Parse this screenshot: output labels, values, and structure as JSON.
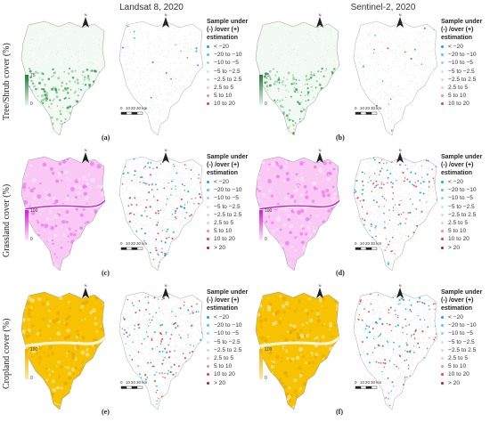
{
  "column_titles": [
    "Landsat 8, 2020",
    "Sentinel-2, 2020"
  ],
  "row_titles": [
    "Tree/Shrub cover (%)",
    "Grassland cover (%)",
    "Cropland cover (%)"
  ],
  "legend_title_lines": [
    "Sample under",
    "(-) /over (+)",
    "estimation"
  ],
  "legend_tree": [
    "< −20",
    "−20 to −10",
    "−10 to −5",
    "−5 to −2.5",
    "−2.5 to 2.5",
    "2.5 to 5",
    "5 to 10",
    "10 to 20"
  ],
  "legend_full": [
    "< −20",
    "−20 to −10",
    "−10 to −5",
    "−5 to −2.5",
    "−2.5 to 2.5",
    "2.5 to 5",
    "5 to 10",
    "10 to 20",
    "> 20"
  ],
  "legend_colors_tree": [
    "#00aeef",
    "#4cc3f0",
    "#8fd6f2",
    "#c8e8f4",
    "#d8d8d8",
    "#f4c8c8",
    "#ee8f8f",
    "#e0443e"
  ],
  "legend_colors_full": [
    "#00aeef",
    "#4cc3f0",
    "#8fd6f2",
    "#c8e8f4",
    "#d8d8d8",
    "#f4c8c8",
    "#ee8f8f",
    "#e0443e",
    "#c8102e"
  ],
  "panel_labels": [
    "(a)",
    "(b)",
    "(c)",
    "(d)",
    "(e)",
    "(f)"
  ],
  "colorbar": {
    "tree": {
      "max": "75",
      "min": "0"
    },
    "grass": {
      "max": "100",
      "min": "0"
    },
    "crop": {
      "max": "100",
      "min": "0"
    }
  },
  "scale_labels": [
    "0",
    "10",
    "20",
    "30 km"
  ],
  "north_label": "N",
  "colors": {
    "tree": "#2a9a4a",
    "grass": "#e23ee0",
    "crop": "#f5b800",
    "under": "#00aeef",
    "over": "#e0443e"
  }
}
